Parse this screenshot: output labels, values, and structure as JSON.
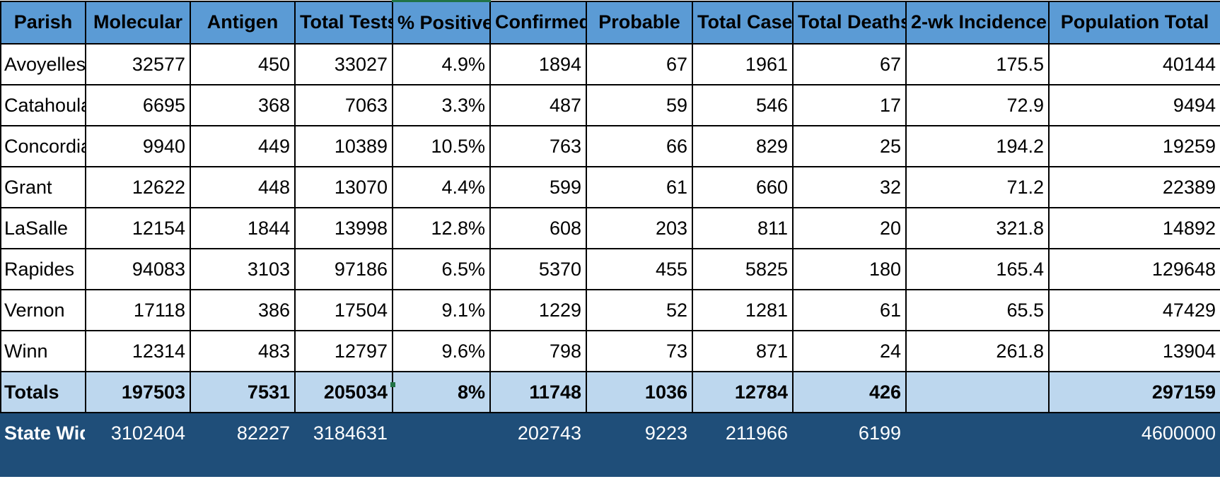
{
  "table": {
    "headers": [
      "Parish",
      "Molecular",
      "Antigen",
      "Total Tests",
      "% Positive",
      "Confirmed",
      "Probable",
      "Total Cases",
      "Total Deaths",
      "2-wk Incidence",
      "Population Total"
    ],
    "rows": [
      [
        "Avoyelles",
        "32577",
        "450",
        "33027",
        "4.9%",
        "1894",
        "67",
        "1961",
        "67",
        "175.5",
        "40144"
      ],
      [
        "Catahoula",
        "6695",
        "368",
        "7063",
        "3.3%",
        "487",
        "59",
        "546",
        "17",
        "72.9",
        "9494"
      ],
      [
        "Concordia",
        "9940",
        "449",
        "10389",
        "10.5%",
        "763",
        "66",
        "829",
        "25",
        "194.2",
        "19259"
      ],
      [
        "Grant",
        "12622",
        "448",
        "13070",
        "4.4%",
        "599",
        "61",
        "660",
        "32",
        "71.2",
        "22389"
      ],
      [
        "LaSalle",
        "12154",
        "1844",
        "13998",
        "12.8%",
        "608",
        "203",
        "811",
        "20",
        "321.8",
        "14892"
      ],
      [
        "Rapides",
        "94083",
        "3103",
        "97186",
        "6.5%",
        "5370",
        "455",
        "5825",
        "180",
        "165.4",
        "129648"
      ],
      [
        "Vernon",
        "17118",
        "386",
        "17504",
        "9.1%",
        "1229",
        "52",
        "1281",
        "61",
        "65.5",
        "47429"
      ],
      [
        "Winn",
        "12314",
        "483",
        "12797",
        "9.6%",
        "798",
        "73",
        "871",
        "24",
        "261.8",
        "13904"
      ]
    ],
    "totals": [
      "Totals",
      "197503",
      "7531",
      "205034",
      "8%",
      "11748",
      "1036",
      "12784",
      "426",
      "",
      "297159"
    ],
    "statewide": [
      "State Wide",
      "3102404",
      "82227",
      "3184631",
      "",
      "202743",
      "9223",
      "211966",
      "6199",
      "",
      "4600000"
    ]
  },
  "colors": {
    "header_bg": "#5b9bd5",
    "totals_bg": "#bdd7ee",
    "statewide_bg": "#1f4e79",
    "selection": "#217346"
  }
}
